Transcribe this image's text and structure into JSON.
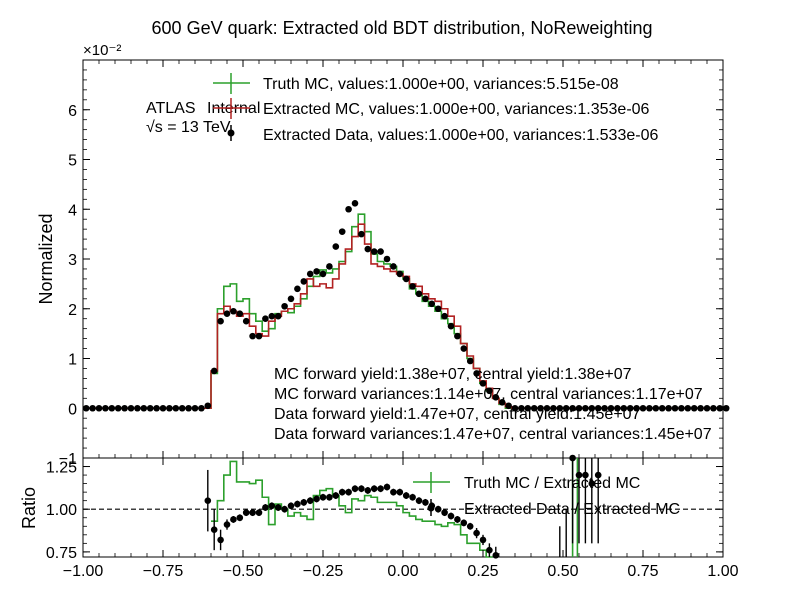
{
  "chart_data": [
    {
      "type": "line",
      "panel": "main",
      "title": "600 GeV quark: Extracted old BDT distribution, NoReweighting",
      "ylabel": "Normalized",
      "y_multiplier": "×10⁻²",
      "xlim": [
        -1.0,
        1.0
      ],
      "ylim": [
        -1,
        7
      ],
      "yticks": [
        "−1",
        "0",
        "1",
        "2",
        "3",
        "4",
        "5",
        "6"
      ],
      "ytick_values": [
        -1,
        0,
        1,
        2,
        3,
        4,
        5,
        6
      ],
      "labels": {
        "atlas": "ATLAS",
        "internal": "Internal",
        "energy": "√s = 13 TeV"
      },
      "annotations": [
        "MC forward yield:1.38e+07, central yield:1.38e+07",
        "MC forward variances:1.14e+07, central variances:1.17e+07",
        "Data forward yield:1.47e+07, central yield:1.45e+07",
        "Data forward variances:1.47e+07, central variances:1.45e+07"
      ],
      "legend": "top-center",
      "bin_edges_start": -1.0,
      "bin_width": 0.02,
      "series": [
        {
          "name": "Truth MC, values:1.000e+00, variances:5.515e-08",
          "style": "step",
          "color": "#2ca02c",
          "values": [
            0,
            0,
            0,
            0,
            0,
            0,
            0,
            0,
            0,
            0,
            0,
            0,
            0,
            0,
            0,
            0,
            0,
            0,
            0,
            0,
            0.7,
            2.0,
            2.45,
            2.5,
            2.15,
            2.2,
            1.9,
            1.75,
            1.55,
            1.6,
            1.9,
            1.95,
            1.92,
            2.05,
            2.2,
            2.45,
            2.65,
            2.78,
            2.72,
            2.8,
            2.95,
            3.15,
            3.65,
            3.9,
            3.55,
            3.1,
            2.95,
            2.9,
            2.85,
            2.75,
            2.6,
            2.4,
            2.3,
            2.15,
            2.05,
            1.95,
            1.8,
            1.7,
            1.5,
            1.3,
            1.0,
            0.8,
            0.5,
            0.35,
            0.2,
            0.08,
            0,
            0,
            0,
            0,
            0,
            0,
            0,
            0,
            0,
            0,
            0,
            0,
            0,
            0,
            0,
            0,
            0,
            0,
            0,
            0,
            0,
            0,
            0,
            0,
            0,
            0,
            0,
            0,
            0,
            0,
            0,
            0,
            0,
            0
          ]
        },
        {
          "name": "Extracted MC, values:1.000e+00, variances:1.353e-06",
          "style": "step",
          "color": "#b22222",
          "values": [
            0,
            0,
            0,
            0,
            0,
            0,
            0,
            0,
            0,
            0,
            0,
            0,
            0,
            0,
            0,
            0,
            0,
            0,
            0,
            0,
            0.75,
            1.9,
            2.05,
            1.95,
            1.85,
            1.9,
            1.65,
            1.5,
            1.45,
            1.75,
            1.85,
            1.95,
            2.0,
            2.1,
            2.3,
            2.6,
            2.45,
            2.5,
            2.42,
            2.6,
            2.9,
            3.2,
            3.45,
            3.7,
            3.3,
            2.9,
            2.85,
            2.8,
            2.75,
            2.7,
            2.65,
            2.5,
            2.45,
            2.3,
            2.2,
            2.15,
            2.0,
            1.85,
            1.65,
            1.3,
            1.05,
            0.8,
            0.55,
            0.4,
            0.2,
            0.1,
            0.03,
            0,
            0,
            0,
            0,
            0,
            0,
            0,
            0,
            0,
            0,
            0,
            0,
            0,
            0,
            0,
            0,
            0,
            0,
            0,
            0,
            0,
            0,
            0,
            0,
            0,
            0,
            0,
            0,
            0,
            0,
            0,
            0,
            0
          ]
        },
        {
          "name": "Extracted Data, values:1.000e+00, variances:1.533e-06",
          "style": "points",
          "color": "#000000",
          "values": [
            0,
            0,
            0,
            0,
            0,
            0,
            0,
            0,
            0,
            0,
            0,
            0,
            0,
            0,
            0,
            0,
            0,
            0,
            0,
            0.05,
            0.75,
            1.75,
            1.9,
            1.95,
            1.9,
            1.75,
            1.45,
            1.45,
            1.8,
            1.85,
            1.85,
            2.05,
            2.2,
            2.4,
            2.55,
            2.7,
            2.75,
            2.7,
            2.85,
            3.25,
            3.55,
            4.0,
            4.12,
            3.5,
            3.2,
            3.15,
            3.15,
            3.0,
            2.85,
            2.7,
            2.6,
            2.45,
            2.3,
            2.2,
            2.1,
            2.0,
            1.85,
            1.65,
            1.45,
            1.2,
            0.95,
            0.7,
            0.5,
            0.35,
            0.22,
            0.12,
            0.05,
            0,
            0,
            0,
            0,
            0,
            0,
            0,
            0,
            0,
            0,
            0,
            0,
            0,
            0,
            0,
            0,
            0,
            0,
            0,
            0,
            0,
            0,
            0,
            0,
            0,
            0,
            0,
            0,
            0,
            0,
            0,
            0,
            0,
            0
          ]
        }
      ]
    },
    {
      "type": "line",
      "panel": "ratio",
      "ylabel": "Ratio",
      "xlim": [
        -1.0,
        1.0
      ],
      "ylim": [
        0.72,
        1.3
      ],
      "yticks": [
        "0.75",
        "1.00",
        "1.25"
      ],
      "ytick_values": [
        0.75,
        1.0,
        1.25
      ],
      "xticks": [
        "−1.00",
        "−0.75",
        "−0.50",
        "−0.25",
        "0.00",
        "0.25",
        "0.50",
        "0.75",
        "1.00"
      ],
      "xtick_values": [
        -1.0,
        -0.75,
        -0.5,
        -0.25,
        0.0,
        0.25,
        0.5,
        0.75,
        1.0
      ],
      "reference_line": 1.0,
      "legend": "top-right",
      "series": [
        {
          "name": "Truth MC / Extracted MC",
          "style": "step",
          "color": "#2ca02c",
          "bins_start": -0.6,
          "values": [
            0.93,
            1.05,
            1.2,
            1.28,
            1.16,
            1.16,
            1.15,
            1.17,
            1.07,
            0.91,
            1.03,
            1.0,
            0.96,
            0.98,
            0.96,
            0.94,
            1.08,
            1.11,
            1.12,
            1.08,
            1.02,
            0.98,
            1.06,
            1.05,
            1.08,
            1.07,
            1.04,
            1.04,
            1.04,
            1.02,
            0.98,
            0.96,
            0.94,
            0.93,
            0.93,
            0.91,
            0.9,
            0.92,
            0.91,
            0.85,
            0.8,
            0.8,
            0.76,
            0.7
          ]
        },
        {
          "name": "Extracted Data / Extracted MC",
          "style": "points",
          "color": "#000000",
          "x": [
            -0.61,
            -0.59,
            -0.57,
            -0.55,
            -0.53,
            -0.51,
            -0.49,
            -0.47,
            -0.45,
            -0.43,
            -0.41,
            -0.39,
            -0.37,
            -0.35,
            -0.33,
            -0.31,
            -0.29,
            -0.27,
            -0.25,
            -0.23,
            -0.21,
            -0.19,
            -0.17,
            -0.15,
            -0.13,
            -0.11,
            -0.09,
            -0.07,
            -0.05,
            -0.03,
            -0.01,
            0.01,
            0.03,
            0.05,
            0.07,
            0.09,
            0.11,
            0.13,
            0.15,
            0.17,
            0.19,
            0.21,
            0.23,
            0.25,
            0.27,
            0.29,
            0.49,
            0.51,
            0.53,
            0.55,
            0.57,
            0.59,
            0.61
          ],
          "values": [
            1.05,
            0.88,
            0.82,
            0.91,
            0.94,
            0.95,
            0.98,
            0.98,
            0.98,
            1.01,
            1.02,
            1.01,
            1.0,
            1.02,
            1.03,
            1.04,
            1.05,
            1.06,
            1.07,
            1.07,
            1.08,
            1.1,
            1.1,
            1.12,
            1.12,
            1.11,
            1.12,
            1.12,
            1.13,
            1.1,
            1.1,
            1.08,
            1.07,
            1.05,
            1.04,
            1.02,
            1.0,
            0.98,
            0.96,
            0.94,
            0.92,
            0.9,
            0.86,
            0.82,
            0.76,
            0.73,
            0.5,
            0.5,
            1.3,
            1.2,
            1.2,
            1.15,
            1.2
          ],
          "errors": [
            0.18,
            0.12,
            0.06,
            0.03,
            0.02,
            0.02,
            0.02,
            0.02,
            0.02,
            0.02,
            0.02,
            0.02,
            0.02,
            0.02,
            0.02,
            0.02,
            0.02,
            0.02,
            0.02,
            0.02,
            0.02,
            0.02,
            0.02,
            0.02,
            0.02,
            0.02,
            0.02,
            0.02,
            0.02,
            0.02,
            0.02,
            0.02,
            0.02,
            0.02,
            0.02,
            0.02,
            0.02,
            0.02,
            0.02,
            0.02,
            0.02,
            0.02,
            0.03,
            0.03,
            0.04,
            0.05,
            0.4,
            0.5,
            0.5,
            0.4,
            0.4,
            0.35,
            0.4
          ]
        }
      ]
    }
  ]
}
